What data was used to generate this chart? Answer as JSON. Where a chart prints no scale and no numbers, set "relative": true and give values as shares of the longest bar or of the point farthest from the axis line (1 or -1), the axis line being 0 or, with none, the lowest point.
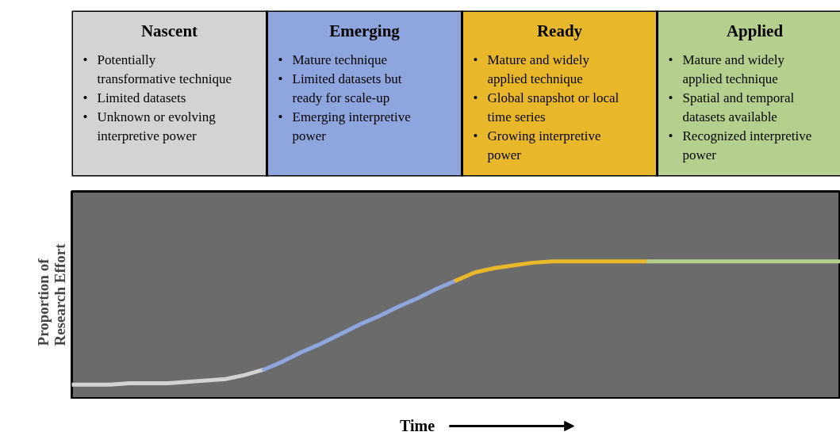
{
  "chart_data": {
    "type": "line",
    "relative": true,
    "xlabel": "Time",
    "ylabel": "Proportion of Research Effort",
    "grid": false,
    "line_style": "solid",
    "categories": [
      null,
      null,
      null,
      null,
      null,
      null,
      null,
      null,
      null,
      null,
      null,
      null,
      null,
      null,
      null,
      null,
      null,
      null,
      null,
      null,
      null,
      null,
      null,
      null,
      null,
      null,
      null,
      null,
      null,
      null,
      null,
      null,
      null,
      null,
      null,
      null,
      null,
      null,
      null,
      null,
      null
    ],
    "series": [
      {
        "color": "#d3d3d3",
        "values": [
          0.1,
          0.1,
          0.1,
          0.11,
          0.11,
          0.11,
          0.12,
          0.13,
          0.14,
          0.17,
          0.21,
          null,
          null,
          null,
          null,
          null,
          null,
          null,
          null,
          null,
          null,
          null,
          null,
          null,
          null,
          null,
          null,
          null,
          null,
          null,
          null,
          null,
          null,
          null,
          null,
          null,
          null,
          null,
          null,
          null,
          null
        ]
      },
      {
        "color": "#8ea5dd",
        "values": [
          null,
          null,
          null,
          null,
          null,
          null,
          null,
          null,
          null,
          null,
          0.21,
          0.27,
          0.34,
          0.4,
          0.47,
          0.54,
          0.6,
          0.67,
          0.73,
          0.8,
          0.86,
          null,
          null,
          null,
          null,
          null,
          null,
          null,
          null,
          null,
          null,
          null,
          null,
          null,
          null,
          null,
          null,
          null,
          null,
          null,
          null
        ]
      },
      {
        "color": "#e8b82a",
        "values": [
          null,
          null,
          null,
          null,
          null,
          null,
          null,
          null,
          null,
          null,
          null,
          null,
          null,
          null,
          null,
          null,
          null,
          null,
          null,
          null,
          0.86,
          0.92,
          0.95,
          0.97,
          0.99,
          1,
          1,
          1,
          1,
          1,
          1,
          null,
          null,
          null,
          null,
          null,
          null,
          null,
          null,
          null,
          null
        ]
      },
      {
        "color": "#b5cf8e",
        "values": [
          null,
          null,
          null,
          null,
          null,
          null,
          null,
          null,
          null,
          null,
          null,
          null,
          null,
          null,
          null,
          null,
          null,
          null,
          null,
          null,
          null,
          null,
          null,
          null,
          null,
          null,
          null,
          null,
          null,
          null,
          1,
          1,
          1,
          1,
          1,
          1,
          1,
          1,
          1,
          1,
          1
        ]
      }
    ],
    "annotations": [
      "Nascent",
      "• Potentially transformative technique\n• Limited datasets\n• Unknown or evolving interpretive power",
      "Emerging",
      "• Mature technique\n• Limited datasets but ready for scale-up\n• Emerging interpretive power",
      "Ready",
      "• Mature and widely applied technique\n• Global snapshot or local time series\n• Growing interpretive power",
      "Applied",
      "• Mature and widely applied technique\n• Spatial and temporal datasets available\n• Recognized interpretive power"
    ]
  }
}
